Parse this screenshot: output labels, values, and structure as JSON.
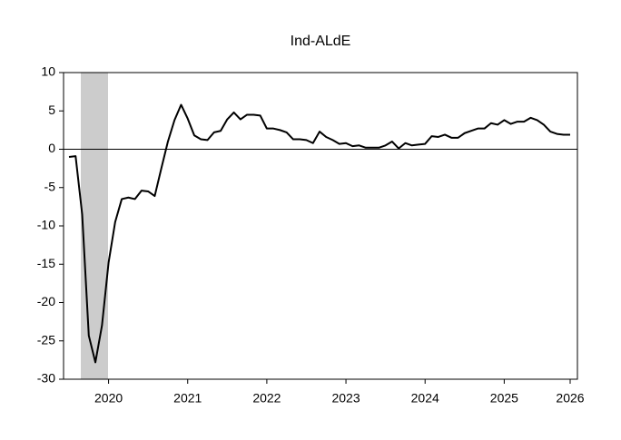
{
  "chart_data": {
    "type": "line",
    "title": "Ind-ALdE",
    "categories": [
      null,
      null,
      null,
      null,
      null,
      null,
      "2020",
      null,
      null,
      null,
      null,
      null,
      null,
      null,
      null,
      null,
      null,
      null,
      "2021",
      null,
      null,
      null,
      null,
      null,
      null,
      null,
      null,
      null,
      null,
      null,
      "2022",
      null,
      null,
      null,
      null,
      null,
      null,
      null,
      null,
      null,
      null,
      null,
      "2023",
      null,
      null,
      null,
      null,
      null,
      null,
      null,
      null,
      null,
      null,
      null,
      "2024",
      null,
      null,
      null,
      null,
      null,
      null,
      null,
      null,
      null,
      null,
      null,
      "2025",
      null,
      null,
      null,
      null,
      null,
      null,
      null,
      null,
      null,
      "2026"
    ],
    "series": [
      {
        "color": "#000000",
        "values": [
          -1.0,
          -0.9,
          -8.5,
          -24.3,
          -27.8,
          -23.0,
          -14.8,
          -9.5,
          -6.5,
          -6.3,
          -6.5,
          -5.4,
          -5.5,
          -6.1,
          -2.5,
          1.0,
          3.8,
          5.8,
          4.0,
          1.8,
          1.3,
          1.2,
          2.2,
          2.4,
          3.9,
          4.8,
          3.9,
          4.5,
          4.5,
          4.4,
          2.7,
          2.7,
          2.5,
          2.2,
          1.3,
          1.3,
          1.2,
          0.8,
          2.3,
          1.6,
          1.2,
          0.7,
          0.8,
          0.4,
          0.5,
          0.2,
          0.2,
          0.2,
          0.5,
          1.0,
          0.1,
          0.8,
          0.5,
          0.6,
          0.7,
          1.7,
          1.6,
          1.9,
          1.5,
          1.5,
          2.1,
          2.4,
          2.7,
          2.7,
          3.4,
          3.2,
          3.8,
          3.3,
          3.6,
          3.6,
          4.1,
          3.8,
          3.2,
          2.3,
          2.0,
          1.9,
          1.9
        ]
      }
    ],
    "ylim": [
      -30,
      10
    ],
    "yticks": [
      -30,
      -25,
      -20,
      -15,
      -10,
      -5,
      0,
      5,
      10
    ],
    "reference_line": 0
  }
}
